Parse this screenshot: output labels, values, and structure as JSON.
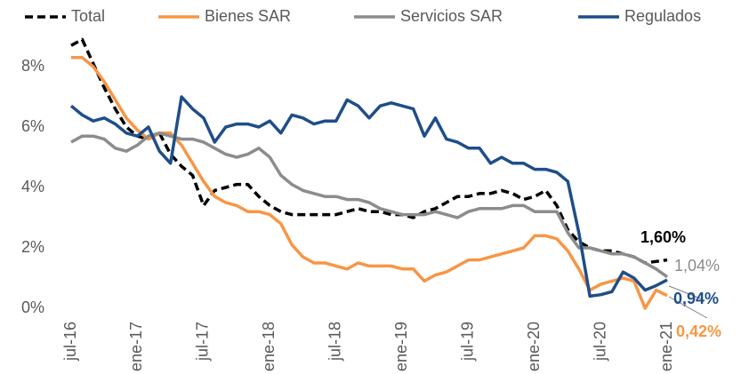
{
  "chart_data": {
    "type": "line",
    "categories": [
      "jul-16",
      null,
      null,
      null,
      null,
      null,
      "ene-17",
      null,
      null,
      null,
      null,
      null,
      "jul-17",
      null,
      null,
      null,
      null,
      null,
      "ene-18",
      null,
      null,
      null,
      null,
      null,
      "jul-18",
      null,
      null,
      null,
      null,
      null,
      "ene-19",
      null,
      null,
      null,
      null,
      null,
      "jul-19",
      null,
      null,
      null,
      null,
      null,
      "ene-20",
      null,
      null,
      null,
      null,
      null,
      "jul-20",
      null,
      null,
      null,
      null,
      null,
      "ene-21"
    ],
    "series": [
      {
        "name": "Total",
        "color": "#000000",
        "dash": true,
        "values": [
          8.7,
          8.9,
          8.1,
          7.3,
          6.6,
          6.0,
          5.7,
          5.6,
          5.8,
          5.1,
          4.7,
          4.4,
          3.4,
          3.9,
          4.0,
          4.1,
          4.1,
          3.7,
          3.4,
          3.2,
          3.1,
          3.1,
          3.1,
          3.1,
          3.1,
          3.2,
          3.3,
          3.2,
          3.2,
          3.1,
          3.1,
          3.0,
          3.2,
          3.3,
          3.5,
          3.7,
          3.7,
          3.8,
          3.8,
          3.9,
          3.8,
          3.6,
          3.7,
          3.9,
          3.4,
          2.6,
          2.2,
          2.0,
          1.9,
          1.9,
          1.8,
          1.7,
          1.5,
          1.55,
          1.6
        ],
        "value_labels": [
          null,
          null,
          null,
          null,
          null,
          null,
          null,
          null,
          null,
          null,
          null,
          null,
          null,
          null,
          null,
          null,
          null,
          null,
          null,
          null,
          null,
          null,
          null,
          null,
          null,
          null,
          null,
          null,
          null,
          null,
          null,
          null,
          null,
          null,
          null,
          null,
          null,
          null,
          null,
          null,
          null,
          null,
          null,
          null,
          null,
          null,
          null,
          null,
          null,
          null,
          null,
          null,
          null,
          null,
          "1,60%"
        ]
      },
      {
        "name": "Bienes SAR",
        "color": "#f79646",
        "values": [
          8.3,
          8.3,
          8.0,
          7.5,
          6.9,
          6.3,
          5.9,
          5.6,
          5.8,
          5.8,
          5.4,
          4.8,
          4.2,
          3.7,
          3.5,
          3.4,
          3.2,
          3.2,
          3.1,
          2.8,
          2.1,
          1.7,
          1.5,
          1.5,
          1.4,
          1.3,
          1.5,
          1.4,
          1.4,
          1.4,
          1.3,
          1.3,
          0.9,
          1.1,
          1.2,
          1.4,
          1.6,
          1.6,
          1.7,
          1.8,
          1.9,
          2.0,
          2.4,
          2.4,
          2.3,
          1.9,
          1.3,
          0.6,
          0.8,
          0.9,
          1.0,
          0.9,
          0.0,
          0.6,
          0.42
        ],
        "value_labels": [
          null,
          null,
          null,
          null,
          null,
          null,
          null,
          null,
          null,
          null,
          null,
          null,
          null,
          null,
          null,
          null,
          null,
          null,
          null,
          null,
          null,
          null,
          null,
          null,
          null,
          null,
          null,
          null,
          null,
          null,
          null,
          null,
          null,
          null,
          null,
          null,
          null,
          null,
          null,
          null,
          null,
          null,
          null,
          null,
          null,
          null,
          null,
          null,
          null,
          null,
          null,
          null,
          null,
          null,
          "0,42%"
        ]
      },
      {
        "name": "Servicios SAR",
        "color": "#8c8c8c",
        "values": [
          5.5,
          5.7,
          5.7,
          5.6,
          5.3,
          5.2,
          5.4,
          5.7,
          5.8,
          5.7,
          5.6,
          5.6,
          5.5,
          5.3,
          5.1,
          5.0,
          5.1,
          5.3,
          5.0,
          4.4,
          4.1,
          3.9,
          3.8,
          3.7,
          3.7,
          3.6,
          3.6,
          3.5,
          3.3,
          3.2,
          3.1,
          3.1,
          3.1,
          3.2,
          3.1,
          3.0,
          3.2,
          3.3,
          3.3,
          3.3,
          3.4,
          3.4,
          3.2,
          3.2,
          3.2,
          2.5,
          2.0,
          2.0,
          1.9,
          1.8,
          1.8,
          1.7,
          1.5,
          1.3,
          1.04
        ],
        "value_labels": [
          null,
          null,
          null,
          null,
          null,
          null,
          null,
          null,
          null,
          null,
          null,
          null,
          null,
          null,
          null,
          null,
          null,
          null,
          null,
          null,
          null,
          null,
          null,
          null,
          null,
          null,
          null,
          null,
          null,
          null,
          null,
          null,
          null,
          null,
          null,
          null,
          null,
          null,
          null,
          null,
          null,
          null,
          null,
          null,
          null,
          null,
          null,
          null,
          null,
          null,
          null,
          null,
          null,
          null,
          "1,04%"
        ]
      },
      {
        "name": "Regulados",
        "color": "#1f4e89",
        "values": [
          6.7,
          6.4,
          6.2,
          6.3,
          6.1,
          5.8,
          5.7,
          6.0,
          5.2,
          4.8,
          7.0,
          6.6,
          6.3,
          5.5,
          6.0,
          6.1,
          6.1,
          6.0,
          6.2,
          5.8,
          6.4,
          6.3,
          6.1,
          6.2,
          6.2,
          6.9,
          6.7,
          6.3,
          6.7,
          6.8,
          6.7,
          6.6,
          5.7,
          6.3,
          5.6,
          5.5,
          5.3,
          5.3,
          4.8,
          5.0,
          4.8,
          4.8,
          4.6,
          4.6,
          4.5,
          4.2,
          2.5,
          0.4,
          0.45,
          0.55,
          1.2,
          1.0,
          0.6,
          0.75,
          0.94
        ],
        "value_labels": [
          null,
          null,
          null,
          null,
          null,
          null,
          null,
          null,
          null,
          null,
          null,
          null,
          null,
          null,
          null,
          null,
          null,
          null,
          null,
          null,
          null,
          null,
          null,
          null,
          null,
          null,
          null,
          null,
          null,
          null,
          null,
          null,
          null,
          null,
          null,
          null,
          null,
          null,
          null,
          null,
          null,
          null,
          null,
          null,
          null,
          null,
          null,
          null,
          null,
          null,
          null,
          null,
          null,
          null,
          "0,94%"
        ]
      }
    ],
    "ylim": [
      0,
      9
    ],
    "yticks": [
      {
        "value": 0,
        "label": "0%"
      },
      {
        "value": 2,
        "label": "2%"
      },
      {
        "value": 4,
        "label": "4%"
      },
      {
        "value": 6,
        "label": "6%"
      },
      {
        "value": 8,
        "label": "8%"
      }
    ],
    "grid": false,
    "legend": "top"
  }
}
